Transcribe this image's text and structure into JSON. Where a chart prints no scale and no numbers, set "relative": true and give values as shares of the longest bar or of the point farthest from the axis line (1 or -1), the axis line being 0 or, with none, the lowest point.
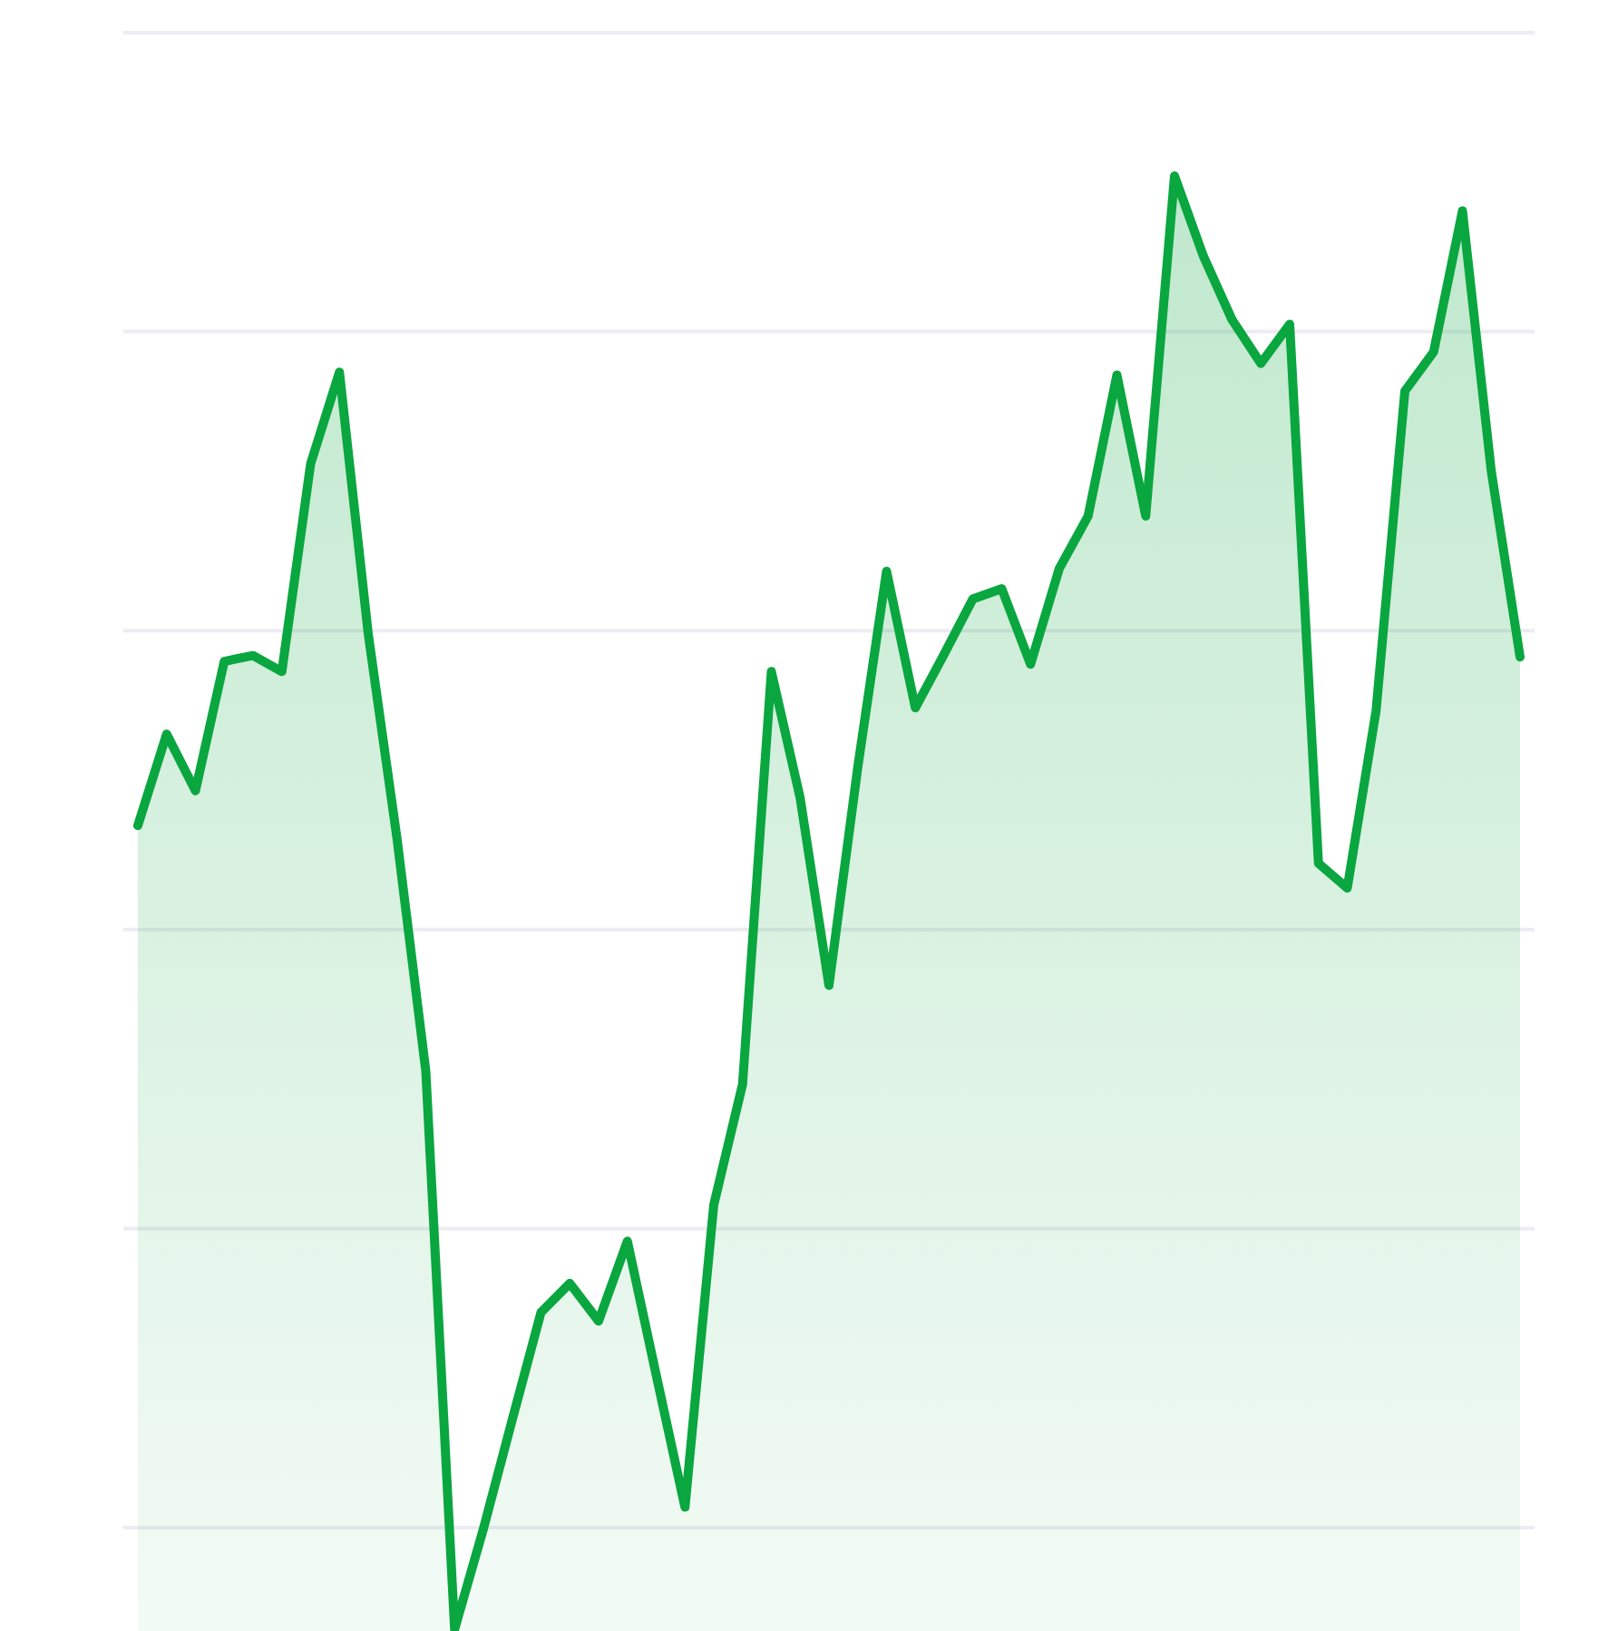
{
  "chart_data": {
    "type": "area",
    "relative": true,
    "categories": [
      null,
      null,
      null,
      null,
      null,
      null,
      null,
      null,
      null,
      null,
      null,
      null,
      null,
      null,
      null,
      null,
      null,
      null,
      null,
      null,
      null,
      null,
      null,
      null,
      null,
      null,
      null,
      null,
      null,
      null,
      null,
      null,
      null,
      null,
      null,
      null,
      null,
      null,
      null,
      null,
      null,
      null,
      null,
      null,
      null,
      null,
      null,
      null,
      null
    ],
    "series": [
      {
        "color": "#0aa63f",
        "values": [
          0.553,
          0.616,
          0.577,
          0.666,
          0.67,
          0.659,
          0.802,
          0.865,
          0.685,
          0.544,
          0.384,
          0,
          0.069,
          0.144,
          0.218,
          0.238,
          0.212,
          0.267,
          0.175,
          0.084,
          0.292,
          0.375,
          0.659,
          0.572,
          0.443,
          0.593,
          0.728,
          0.634,
          0.671,
          0.709,
          0.716,
          0.664,
          0.73,
          0.766,
          0.863,
          0.766,
          1,
          0.945,
          0.901,
          0.871,
          0.898,
          0.527,
          0.51,
          0.632,
          0.852,
          0.879,
          0.976,
          0.797,
          0.669
        ]
      }
    ],
    "grid": "y",
    "line_style": "solid"
  }
}
